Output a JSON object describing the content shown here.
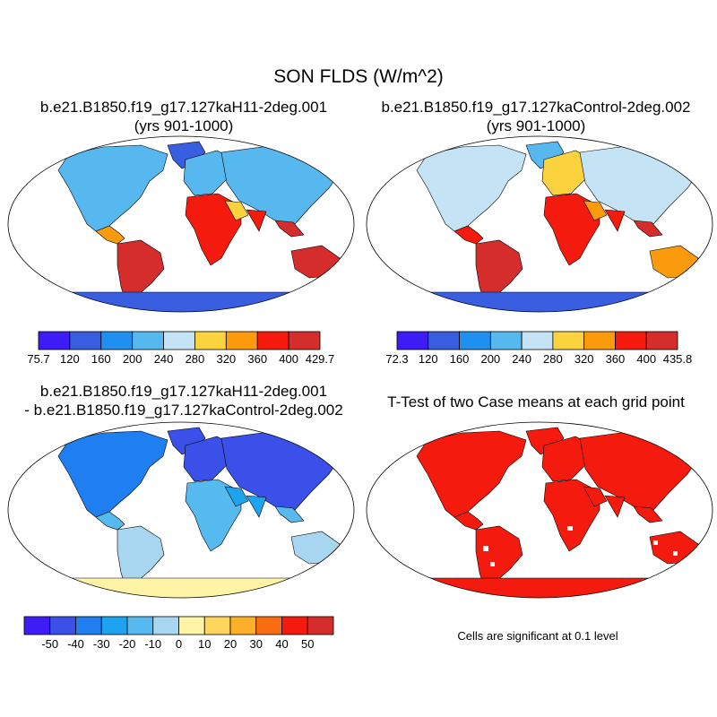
{
  "title": "SON FLDS (W/m^2)",
  "panels": [
    {
      "id": "p1",
      "title_line1": "b.e21.B1850.f19_g17.127kaH11-2deg.001",
      "title_line2": "(yrs 901-1000)",
      "colorbar": {
        "colors": [
          "#3e1cf5",
          "#3a5ee0",
          "#1f8ff0",
          "#56b8ee",
          "#c4e4f6",
          "#fcd23e",
          "#fb9a0d",
          "#f41b0e",
          "#d42d2c"
        ],
        "labels": [
          "75.7",
          "120",
          "160",
          "200",
          "240",
          "280",
          "320",
          "360",
          "400",
          "429.7"
        ]
      }
    },
    {
      "id": "p2",
      "title_line1": "b.e21.B1850.f19_g17.127kaControl-2deg.002",
      "title_line2": "(yrs 901-1000)",
      "colorbar": {
        "colors": [
          "#3e1cf5",
          "#3a5ee0",
          "#1f8ff0",
          "#56b8ee",
          "#c4e4f6",
          "#fcd23e",
          "#fb9a0d",
          "#f41b0e",
          "#d42d2c"
        ],
        "labels": [
          "72.3",
          "120",
          "160",
          "200",
          "240",
          "280",
          "320",
          "360",
          "400",
          "435.8"
        ]
      }
    },
    {
      "id": "p3",
      "title_line1": "b.e21.B1850.f19_g17.127kaH11-2deg.001",
      "title_line2": "- b.e21.B1850.f19_g17.127kaControl-2deg.002",
      "colorbar": {
        "colors": [
          "#3e1cf5",
          "#3a50e8",
          "#1f7ff0",
          "#1ea3f0",
          "#56baee",
          "#a8d6f0",
          "#fff3a6",
          "#fed65c",
          "#fcb02a",
          "#fb6d12",
          "#f41b0e",
          "#d42d2c"
        ],
        "labels": [
          "-50",
          "-40",
          "-30",
          "-20",
          "-10",
          "0",
          "10",
          "20",
          "30",
          "40",
          "50"
        ]
      }
    },
    {
      "id": "p4",
      "title_line1": "T-Test of two Case means at each grid point",
      "note": "Cells are significant at 0.1 level"
    }
  ],
  "colors": {
    "land_fill_significant": "#f41b0e",
    "coastline": "#000000",
    "ocean": "#ffffff"
  }
}
